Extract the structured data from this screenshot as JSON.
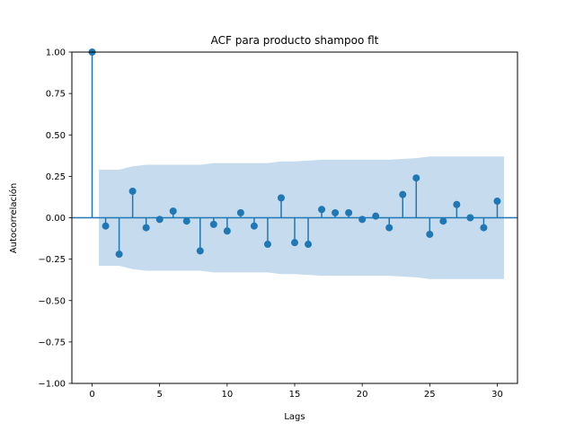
{
  "chart_data": {
    "type": "scatter",
    "title": "ACF para producto shampoo flt",
    "xlabel": "Lags",
    "ylabel": "Autocorrelación",
    "xlim": [
      -1.5,
      31.5
    ],
    "ylim": [
      -1.0,
      1.0
    ],
    "x_ticks": [
      0,
      5,
      10,
      15,
      20,
      25,
      30
    ],
    "x_tick_labels": [
      "0",
      "5",
      "10",
      "15",
      "20",
      "25",
      "30"
    ],
    "y_ticks": [
      1.0,
      0.75,
      0.5,
      0.25,
      0.0,
      -0.25,
      -0.5,
      -0.75,
      -1.0
    ],
    "y_tick_labels": [
      "1.00",
      "0.75",
      "0.50",
      "0.25",
      "0.00",
      "−0.25",
      "−0.50",
      "−0.75",
      "−1.00"
    ],
    "grid": false,
    "series": [
      {
        "lags": [
          0,
          1,
          2,
          3,
          4,
          5,
          6,
          7,
          8,
          9,
          10,
          11,
          12,
          13,
          14,
          15,
          16,
          17,
          18,
          19,
          20,
          21,
          22,
          23,
          24,
          25,
          26,
          27,
          28,
          29,
          30
        ],
        "values": [
          1.0,
          -0.05,
          -0.22,
          0.16,
          -0.06,
          -0.01,
          0.04,
          -0.02,
          -0.2,
          -0.04,
          -0.08,
          0.03,
          -0.05,
          -0.16,
          0.12,
          -0.15,
          -0.16,
          0.05,
          0.03,
          0.03,
          -0.01,
          0.01,
          -0.06,
          0.14,
          0.24,
          -0.1,
          -0.02,
          0.08,
          0.0,
          -0.06,
          0.1
        ]
      }
    ],
    "confidence_band": {
      "lags": [
        0.5,
        1,
        2,
        3,
        4,
        5,
        6,
        7,
        8,
        9,
        10,
        11,
        12,
        13,
        14,
        15,
        16,
        17,
        18,
        19,
        20,
        21,
        22,
        23,
        24,
        25,
        26,
        27,
        28,
        29,
        30,
        30.5
      ],
      "upper": [
        0.29,
        0.29,
        0.29,
        0.31,
        0.32,
        0.32,
        0.32,
        0.32,
        0.32,
        0.33,
        0.33,
        0.33,
        0.33,
        0.33,
        0.34,
        0.34,
        0.345,
        0.35,
        0.35,
        0.35,
        0.35,
        0.35,
        0.35,
        0.355,
        0.36,
        0.37,
        0.37,
        0.37,
        0.37,
        0.37,
        0.37,
        0.37
      ],
      "lower": [
        -0.29,
        -0.29,
        -0.29,
        -0.31,
        -0.32,
        -0.32,
        -0.32,
        -0.32,
        -0.32,
        -0.33,
        -0.33,
        -0.33,
        -0.33,
        -0.33,
        -0.34,
        -0.34,
        -0.345,
        -0.35,
        -0.35,
        -0.35,
        -0.35,
        -0.35,
        -0.35,
        -0.355,
        -0.36,
        -0.37,
        -0.37,
        -0.37,
        -0.37,
        -0.37,
        -0.37,
        -0.37
      ]
    },
    "colors": {
      "stem": "#1f77b4",
      "marker": "#1f77b4",
      "band": "#c6dbed",
      "zero_line": "#1f77b4"
    }
  }
}
